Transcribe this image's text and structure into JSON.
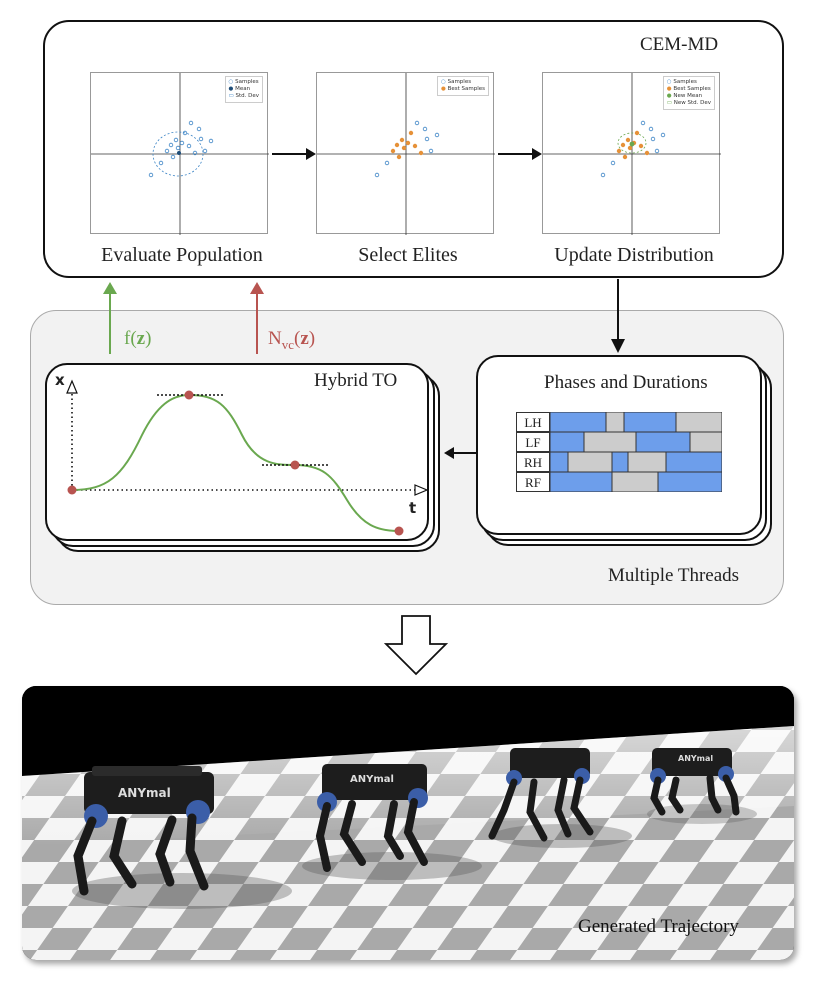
{
  "cem": {
    "title": "CEM-MD",
    "steps": [
      {
        "label": "Evaluate Population",
        "legend": [
          "Samples",
          "Mean",
          "Std. Dev"
        ]
      },
      {
        "label": "Select Elites",
        "legend": [
          "Samples",
          "Best Samples"
        ]
      },
      {
        "label": "Update Distribution",
        "legend": [
          "Samples",
          "Best Samples",
          "New Mean",
          "New Std. Dev"
        ]
      }
    ]
  },
  "feedback": {
    "cost_label": "f(",
    "cost_var": "z",
    "cost_close": ")",
    "violation_label": "N",
    "violation_sub": "vc",
    "violation_open": "(",
    "violation_var": "z",
    "violation_close": ")"
  },
  "threads": {
    "label": "Multiple Threads",
    "hybrid_to": {
      "title": "Hybrid TO",
      "y_axis": "x",
      "x_axis": "t"
    },
    "phases": {
      "title": "Phases and Durations",
      "rows": [
        "LH",
        "LF",
        "RH",
        "RF"
      ]
    }
  },
  "simulation": {
    "label": "Generated Trajectory",
    "robot_brand": "ANYmal"
  },
  "colors": {
    "blue": "#6d9eeb",
    "gray": "#cccccc",
    "green": "#6aa84f",
    "red": "#b85450",
    "orange": "#e69138",
    "sample": "#3d85c6"
  }
}
